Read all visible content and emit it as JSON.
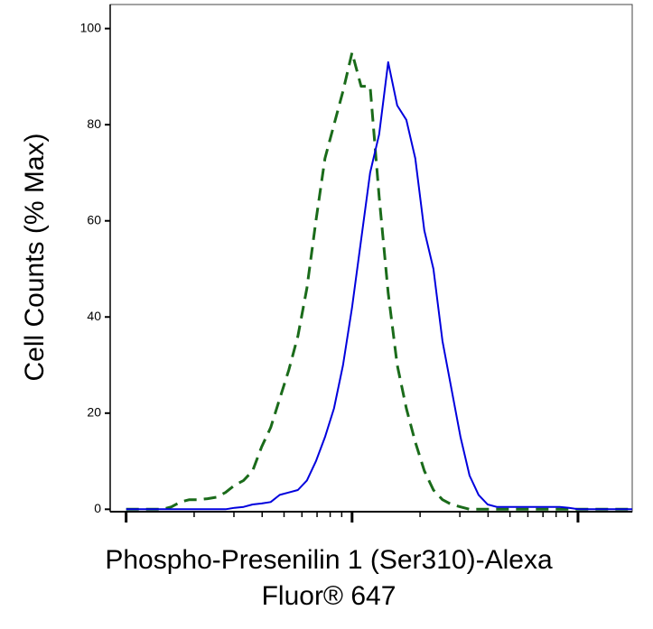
{
  "chart_data": {
    "type": "line",
    "y_label": "Cell Counts (% Max)",
    "x_label": [
      "Phospho-Presenilin 1 (Ser310)-Alexa",
      "Fluor® 647"
    ],
    "x_log": true,
    "xlim": [
      0.85,
      173.8
    ],
    "xticks": [
      1,
      2,
      3,
      4,
      5,
      6,
      7,
      8,
      9,
      10,
      20,
      30,
      40,
      50,
      60,
      70,
      80,
      90,
      100
    ],
    "ylim": [
      -0.5,
      105
    ],
    "yticks": [
      0,
      20,
      40,
      60,
      80,
      100
    ],
    "x": [
      1,
      1.096,
      1.202,
      1.318,
      1.445,
      1.585,
      1.738,
      1.905,
      2.089,
      2.291,
      2.512,
      2.754,
      3.02,
      3.311,
      3.631,
      3.981,
      4.365,
      4.786,
      5.248,
      5.754,
      6.31,
      6.918,
      7.586,
      8.318,
      9.12,
      10,
      10.96,
      12.02,
      13.18,
      14.45,
      15.85,
      17.38,
      19.05,
      20.89,
      22.91,
      25.12,
      27.54,
      30.2,
      33.11,
      36.31,
      39.81,
      43.65,
      47.86,
      52.48,
      57.54,
      63.1,
      69.18,
      75.86,
      83.18,
      91.2,
      100,
      109.6,
      120.2,
      131.8,
      144.5,
      158.5,
      173.8
    ],
    "series": [
      {
        "color": "#1a6b1a",
        "dashed": true,
        "values": [
          0,
          0,
          0,
          0,
          0,
          0.5,
          1.5,
          2,
          2,
          2.2,
          2.5,
          3.5,
          5,
          6,
          8,
          13,
          17,
          23,
          29,
          36,
          46,
          60,
          73,
          80,
          87,
          95,
          88,
          88,
          65,
          45,
          30,
          21,
          14,
          8,
          4,
          2,
          1,
          0.5,
          0,
          0,
          0,
          0,
          0,
          0,
          0,
          0,
          0,
          0,
          0,
          0,
          0,
          0,
          0,
          0,
          0,
          0,
          0
        ]
      },
      {
        "color": "#0000dd",
        "dashed": false,
        "values": [
          0,
          0,
          0,
          0,
          0,
          0,
          0,
          0,
          0,
          0,
          0,
          0,
          0.3,
          0.5,
          1,
          1.2,
          1.5,
          3,
          3.5,
          4,
          6,
          10,
          15,
          21,
          30,
          42,
          56,
          70,
          78,
          93,
          84,
          81,
          73,
          58,
          50,
          35,
          25,
          15,
          7,
          3,
          1,
          0.5,
          0.5,
          0.5,
          0.5,
          0.5,
          0.5,
          0.5,
          0.5,
          0.3,
          0,
          0,
          0,
          0,
          0,
          0,
          0
        ]
      }
    ]
  }
}
